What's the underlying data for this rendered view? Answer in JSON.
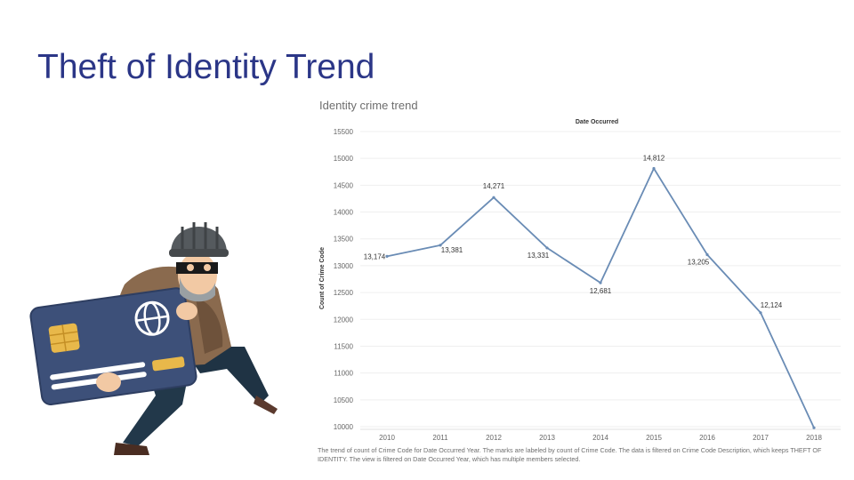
{
  "slide": {
    "title": "Theft of Identity Trend"
  },
  "illustration": {
    "description_icon": "thief-with-credit-card-icon"
  },
  "chart_data": {
    "type": "line",
    "title": "Identity crime trend",
    "column_header": "Date Occurred",
    "ylabel": "Count of Crime Code",
    "xlabel": "",
    "x": [
      "2010",
      "2011",
      "2012",
      "2013",
      "2014",
      "2015",
      "2016",
      "2017",
      "2018"
    ],
    "series": [
      {
        "values": [
          13174,
          13381,
          14271,
          13331,
          12681,
          14812,
          13205,
          12124,
          9980
        ],
        "labels": [
          "13,174",
          "13,381",
          "14,271",
          "13,331",
          "12,681",
          "14,812",
          "13,205",
          "12,124",
          ""
        ]
      }
    ],
    "ylim": [
      10000,
      15500
    ],
    "yticks": [
      10000,
      10500,
      11000,
      11500,
      12000,
      12500,
      13000,
      13500,
      14000,
      14500,
      15000,
      15500
    ],
    "grid": true,
    "line_color": "#6a8cb5",
    "caption": "The trend of count of Crime Code for Date Occurred Year.  The marks are labeled by count of Crime Code. The data is filtered on Crime Code Description, which keeps THEFT OF IDENTITY. The view is filtered on Date Occurred Year, which has multiple members selected."
  }
}
